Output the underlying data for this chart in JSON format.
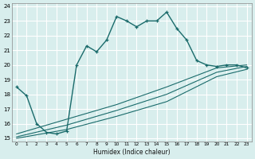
{
  "xlabel": "Humidex (Indice chaleur)",
  "bg_color": "#d8eeed",
  "grid_color": "#ffffff",
  "line_color": "#1a6b6b",
  "xlim": [
    -0.5,
    23.5
  ],
  "ylim": [
    14.8,
    24.2
  ],
  "xticks": [
    0,
    1,
    2,
    3,
    4,
    5,
    6,
    7,
    8,
    9,
    10,
    11,
    12,
    13,
    14,
    15,
    16,
    17,
    18,
    19,
    20,
    21,
    22,
    23
  ],
  "yticks": [
    15,
    16,
    17,
    18,
    19,
    20,
    21,
    22,
    23,
    24
  ],
  "main_x": [
    0,
    1,
    2,
    3,
    4,
    5,
    6,
    7,
    8,
    9,
    10,
    11,
    12,
    13,
    14,
    15,
    16,
    17,
    18,
    19,
    20,
    21,
    22,
    23
  ],
  "main_y": [
    18.5,
    17.9,
    16.0,
    15.4,
    15.3,
    15.5,
    20.0,
    21.3,
    20.9,
    21.7,
    23.3,
    23.0,
    22.6,
    23.0,
    23.0,
    23.6,
    22.5,
    21.7,
    20.3,
    20.0,
    19.9,
    20.0,
    20.0,
    19.8
  ],
  "line1_x": [
    0,
    5,
    10,
    15,
    20,
    23
  ],
  "line1_y": [
    15.0,
    15.6,
    16.5,
    17.5,
    19.2,
    19.7
  ],
  "line2_x": [
    0,
    5,
    10,
    15,
    20,
    23
  ],
  "line2_y": [
    15.1,
    15.9,
    16.9,
    18.0,
    19.5,
    19.9
  ],
  "line3_x": [
    0,
    5,
    10,
    15,
    20,
    23
  ],
  "line3_y": [
    15.3,
    16.3,
    17.3,
    18.5,
    19.8,
    20.0
  ]
}
